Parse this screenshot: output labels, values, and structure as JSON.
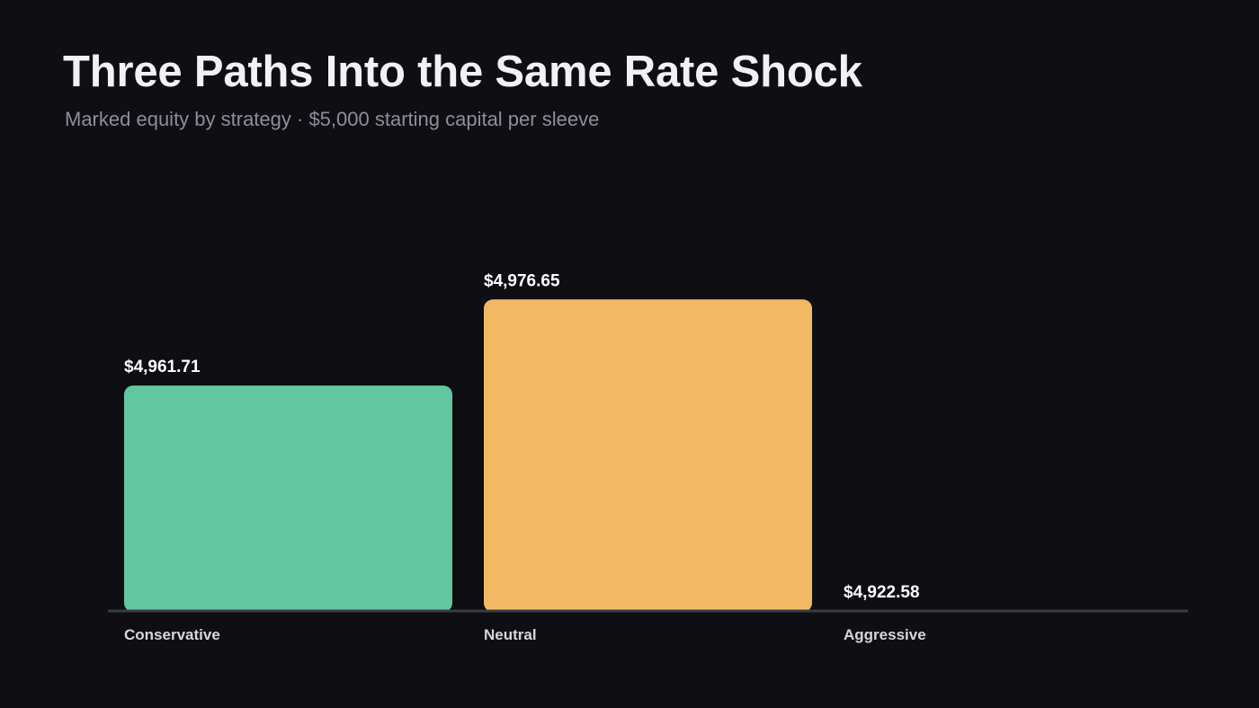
{
  "header": {
    "title": "Three Paths Into the Same Rate Shock",
    "subtitle": "Marked equity by strategy · $5,000 starting capital per sleeve"
  },
  "chart_data": {
    "type": "bar",
    "title": "Three Paths Into the Same Rate Shock",
    "subtitle": "Marked equity by strategy · $5,000 starting capital per sleeve",
    "categories": [
      "Conservative",
      "Neutral",
      "Aggressive"
    ],
    "values": [
      4961.71,
      4976.65,
      4922.58
    ],
    "value_labels": [
      "$4,961.71",
      "$4,976.65",
      "$4,922.58"
    ],
    "colors": [
      "#62c7a0",
      "#f2b965",
      "#a98ee0"
    ],
    "ylim": [
      4922.58,
      4999.0
    ],
    "grid": false,
    "legend": "none",
    "xlabel": "",
    "ylabel": ""
  },
  "colors": {
    "background": "#0e0e13",
    "baseline": "#3a3b44",
    "title": "#f2f2f4",
    "subtitle": "#8c8f99",
    "value_label": "#ffffff",
    "category_label": "#d6d7dc"
  }
}
